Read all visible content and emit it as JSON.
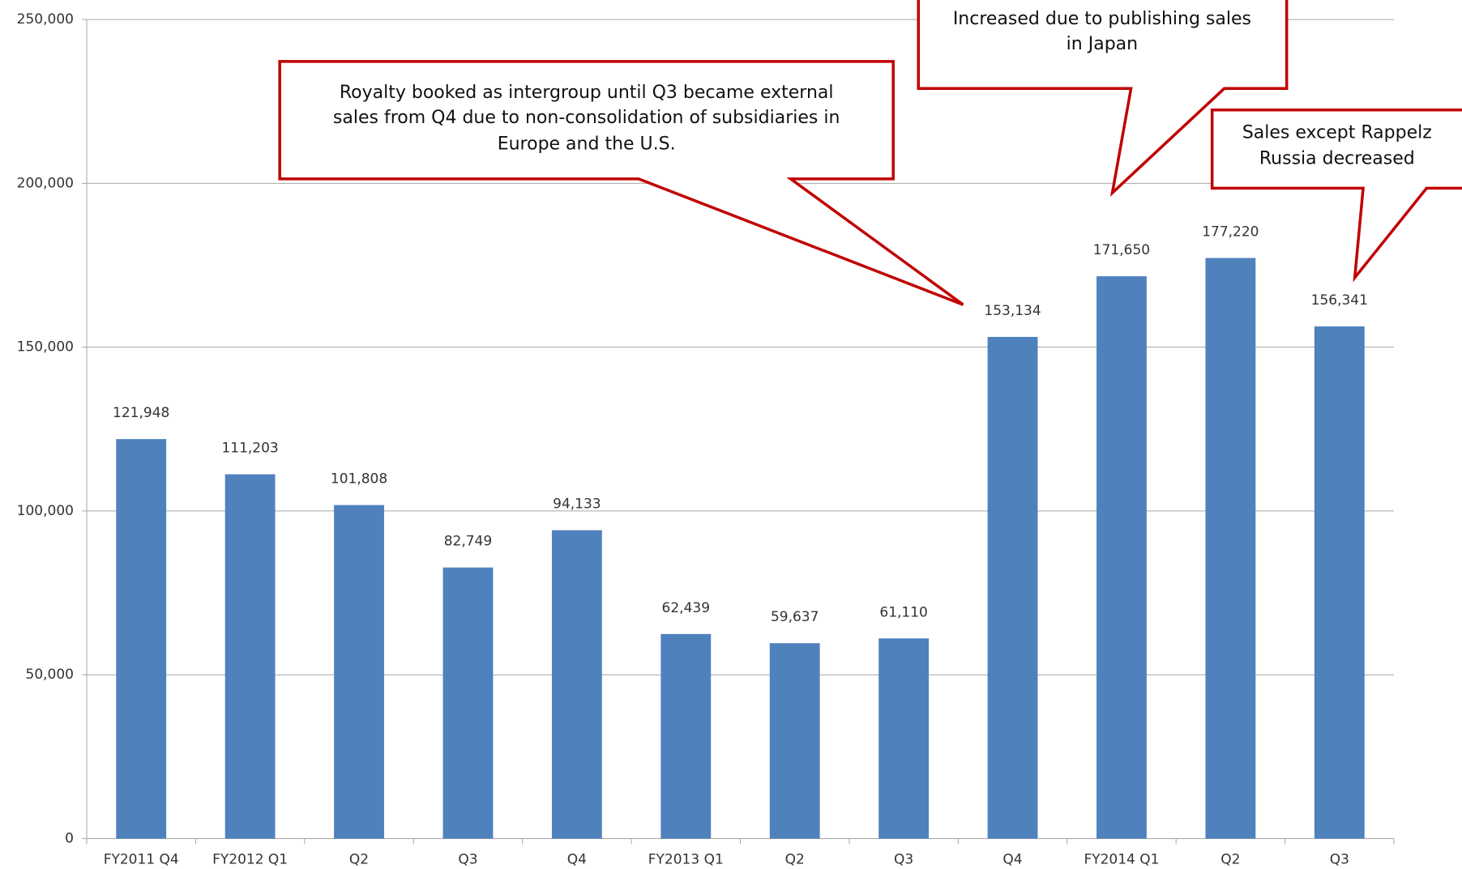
{
  "chart_data": {
    "type": "bar",
    "categories": [
      "FY2011 Q4",
      "FY2012 Q1",
      "Q2",
      "Q3",
      "Q4",
      "FY2013 Q1",
      "Q2",
      "Q3",
      "Q4",
      "FY2014 Q1",
      "Q2",
      "Q3"
    ],
    "values": [
      121948,
      111203,
      101808,
      82749,
      94133,
      62439,
      59637,
      61110,
      153134,
      171650,
      177220,
      156341
    ],
    "value_labels": [
      "121,948",
      "111,203",
      "101,808",
      "82,749",
      "94,133",
      "62,439",
      "59,637",
      "61,110",
      "153,134",
      "171,650",
      "177,220",
      "156,341"
    ],
    "color": "#4f81bd",
    "ylim": [
      0,
      250000
    ],
    "yticks": [
      0,
      {
        "value": 50000,
        "label": "50,000"
      },
      {
        "value": 100000,
        "label": "100,000"
      },
      {
        "value": 150000,
        "label": "150,000"
      },
      {
        "value": 200000,
        "label": "200,000"
      },
      {
        "value": 250000,
        "label": "250,000"
      }
    ],
    "grid": true,
    "annotations": [
      {
        "text": [
          "Royalty booked as intergroup until Q3 became external",
          "sales from Q4 due to non-consolidation of subsidiaries in",
          "Europe and the U.S."
        ]
      },
      {
        "text": [
          "Increased due to publishing sales",
          "in Japan"
        ]
      },
      {
        "text": [
          "Sales except Rappelz",
          "Russia decreased"
        ]
      }
    ]
  }
}
